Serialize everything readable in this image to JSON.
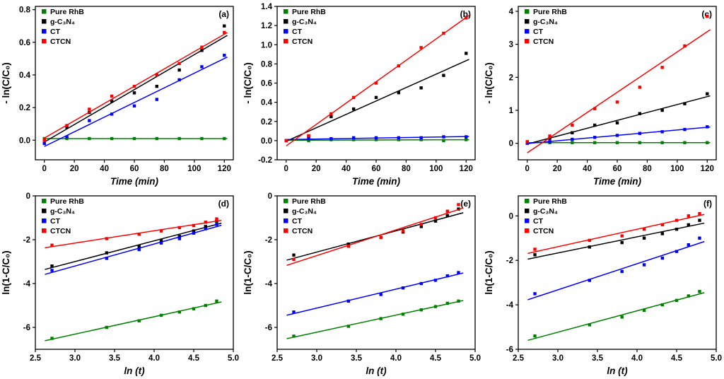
{
  "figure": {
    "background": "#ffffff"
  },
  "colors": {
    "pure_rhb": "#008000",
    "gc3n4": "#000000",
    "ct": "#0000ff",
    "ctcn": "#ff0000"
  },
  "legend_labels": [
    "Pure RhB",
    "g-C₃N₄",
    "CT",
    "CTCN"
  ],
  "chart_data": [
    {
      "id": "a",
      "type": "scatter",
      "panel_label": "(a)",
      "xlabel": "Time (min)",
      "ylabel": "- ln(C/C₀)",
      "xlim": [
        -6,
        126
      ],
      "ylim": [
        -0.12,
        0.82
      ],
      "xticks": [
        0,
        20,
        40,
        60,
        80,
        100,
        120
      ],
      "xtick_labels": [
        "0",
        "20",
        "40",
        "60",
        "80",
        "100",
        "120"
      ],
      "yticks": [
        0.0,
        0.2,
        0.4,
        0.6,
        0.8
      ],
      "ytick_labels": [
        "0.0",
        "0.2",
        "0.4",
        "0.6",
        "0.8"
      ],
      "line_x": [
        0,
        122
      ],
      "series": [
        {
          "name": "Pure RhB",
          "color": "#008000",
          "x": [
            0,
            15,
            30,
            45,
            60,
            75,
            90,
            105,
            120
          ],
          "y": [
            0.01,
            0.01,
            0.01,
            0.01,
            0.01,
            0.01,
            0.01,
            0.01,
            0.01
          ]
        },
        {
          "name": "g-C₃N₄",
          "color": "#000000",
          "x": [
            0,
            15,
            30,
            45,
            60,
            75,
            90,
            105,
            120
          ],
          "y": [
            0.0,
            0.08,
            0.17,
            0.24,
            0.29,
            0.33,
            0.43,
            0.55,
            0.7
          ]
        },
        {
          "name": "CT",
          "color": "#0000ff",
          "x": [
            0,
            15,
            30,
            45,
            60,
            75,
            90,
            105,
            120
          ],
          "y": [
            -0.02,
            0.02,
            0.12,
            0.16,
            0.21,
            0.25,
            0.37,
            0.45,
            0.52
          ]
        },
        {
          "name": "CTCN",
          "color": "#ff0000",
          "x": [
            0,
            15,
            30,
            45,
            60,
            75,
            90,
            105,
            120
          ],
          "y": [
            0.0,
            0.09,
            0.19,
            0.27,
            0.33,
            0.4,
            0.47,
            0.57,
            0.66
          ]
        }
      ]
    },
    {
      "id": "b",
      "type": "scatter",
      "panel_label": "(b)",
      "xlabel": "Time (min)",
      "ylabel": "- ln(C/C₀)",
      "xlim": [
        -6,
        126
      ],
      "ylim": [
        -0.2,
        1.4
      ],
      "xticks": [
        0,
        20,
        40,
        60,
        80,
        100,
        120
      ],
      "xtick_labels": [
        "0",
        "20",
        "40",
        "60",
        "80",
        "100",
        "120"
      ],
      "yticks": [
        -0.2,
        0.0,
        0.2,
        0.4,
        0.6,
        0.8,
        1.0,
        1.2,
        1.4
      ],
      "ytick_labels": [
        "-0.2",
        "0.0",
        "0.2",
        "0.4",
        "0.6",
        "0.8",
        "1.0",
        "1.2",
        "1.4"
      ],
      "line_x": [
        0,
        122
      ],
      "series": [
        {
          "name": "Pure RhB",
          "color": "#008000",
          "x": [
            0,
            15,
            30,
            45,
            60,
            75,
            90,
            105,
            120
          ],
          "y": [
            0.0,
            0.0,
            0.01,
            0.01,
            0.01,
            0.01,
            0.01,
            0.0,
            0.01
          ]
        },
        {
          "name": "g-C₃N₄",
          "color": "#000000",
          "x": [
            0,
            15,
            30,
            45,
            60,
            75,
            90,
            105,
            120
          ],
          "y": [
            0.0,
            0.05,
            0.25,
            0.33,
            0.45,
            0.5,
            0.55,
            0.68,
            0.91
          ]
        },
        {
          "name": "CT",
          "color": "#0000ff",
          "x": [
            0,
            15,
            30,
            45,
            60,
            75,
            90,
            105,
            120
          ],
          "y": [
            0.0,
            0.02,
            0.02,
            0.03,
            0.03,
            0.03,
            0.03,
            0.04,
            0.04
          ]
        },
        {
          "name": "CTCN",
          "color": "#ff0000",
          "x": [
            0,
            15,
            30,
            45,
            60,
            75,
            90,
            105,
            120
          ],
          "y": [
            0.0,
            0.05,
            0.28,
            0.45,
            0.6,
            0.78,
            0.97,
            1.12,
            1.28
          ]
        }
      ]
    },
    {
      "id": "c",
      "type": "scatter",
      "panel_label": "(c)",
      "xlabel": "Time (min)",
      "ylabel": "- ln(C/C₀)",
      "xlim": [
        -6,
        126
      ],
      "ylim": [
        -0.5,
        4.15
      ],
      "xticks": [
        0,
        20,
        40,
        60,
        80,
        100,
        120
      ],
      "xtick_labels": [
        "0",
        "20",
        "40",
        "60",
        "80",
        "100",
        "120"
      ],
      "yticks": [
        0,
        1,
        2,
        3,
        4
      ],
      "ytick_labels": [
        "0",
        "1",
        "2",
        "3",
        "4"
      ],
      "line_x": [
        0,
        122
      ],
      "series": [
        {
          "name": "Pure RhB",
          "color": "#008000",
          "x": [
            0,
            15,
            30,
            45,
            60,
            75,
            90,
            105,
            120
          ],
          "y": [
            0.02,
            0.02,
            0.02,
            0.02,
            0.02,
            0.02,
            0.02,
            0.02,
            0.02
          ]
        },
        {
          "name": "g-C₃N₄",
          "color": "#000000",
          "x": [
            0,
            15,
            30,
            45,
            60,
            75,
            90,
            105,
            120
          ],
          "y": [
            0.02,
            0.15,
            0.32,
            0.55,
            0.62,
            0.9,
            1.0,
            1.2,
            1.5
          ]
        },
        {
          "name": "CT",
          "color": "#0000ff",
          "x": [
            0,
            15,
            30,
            45,
            60,
            75,
            90,
            105,
            120
          ],
          "y": [
            0.0,
            0.05,
            0.12,
            0.18,
            0.24,
            0.3,
            0.35,
            0.42,
            0.5
          ]
        },
        {
          "name": "CTCN",
          "color": "#ff0000",
          "x": [
            0,
            15,
            30,
            45,
            60,
            75,
            90,
            105,
            120
          ],
          "y": [
            0.05,
            0.22,
            0.55,
            1.05,
            1.25,
            1.7,
            2.3,
            2.95,
            3.85
          ]
        }
      ]
    },
    {
      "id": "d",
      "type": "scatter",
      "panel_label": "(d)",
      "xlabel": "ln (t)",
      "ylabel": "ln(1-C/C₀)",
      "xlim": [
        2.5,
        5.0
      ],
      "ylim": [
        -7,
        0
      ],
      "xticks": [
        2.5,
        3.0,
        3.5,
        4.0,
        4.5,
        5.0
      ],
      "xtick_labels": [
        "2.5",
        "3.0",
        "3.5",
        "4.0",
        "4.5",
        "5.0"
      ],
      "yticks": [
        0,
        -2,
        -4,
        -6
      ],
      "ytick_labels": [
        "0",
        "-2",
        "-4",
        "-6"
      ],
      "line_x": [
        2.62,
        4.85
      ],
      "series": [
        {
          "name": "Pure RhB",
          "color": "#008000",
          "x": [
            2.71,
            3.4,
            3.81,
            4.09,
            4.32,
            4.5,
            4.65,
            4.79
          ],
          "y": [
            -6.5,
            -6.0,
            -5.7,
            -5.45,
            -5.3,
            -5.15,
            -5.0,
            -4.8
          ]
        },
        {
          "name": "g-C₃N₄",
          "color": "#000000",
          "x": [
            2.71,
            3.4,
            3.81,
            4.09,
            4.32,
            4.5,
            4.65,
            4.79
          ],
          "y": [
            -3.2,
            -2.6,
            -2.3,
            -2.05,
            -1.85,
            -1.6,
            -1.4,
            -1.15
          ]
        },
        {
          "name": "CT",
          "color": "#0000ff",
          "x": [
            2.71,
            3.4,
            3.81,
            4.09,
            4.32,
            4.5,
            4.65,
            4.79
          ],
          "y": [
            -3.4,
            -2.85,
            -2.45,
            -2.15,
            -1.95,
            -1.7,
            -1.5,
            -1.3
          ]
        },
        {
          "name": "CTCN",
          "color": "#ff0000",
          "x": [
            2.71,
            3.4,
            3.81,
            4.09,
            4.32,
            4.5,
            4.65,
            4.79
          ],
          "y": [
            -2.25,
            -1.95,
            -1.75,
            -1.6,
            -1.45,
            -1.35,
            -1.2,
            -1.05
          ]
        }
      ]
    },
    {
      "id": "e",
      "type": "scatter",
      "panel_label": "(e)",
      "xlabel": "ln (t)",
      "ylabel": "ln(1-C/C₀)",
      "xlim": [
        2.5,
        5.0
      ],
      "ylim": [
        -7,
        0
      ],
      "xticks": [
        2.5,
        3.0,
        3.5,
        4.0,
        4.5,
        5.0
      ],
      "xtick_labels": [
        "2.5",
        "3.0",
        "3.5",
        "4.0",
        "4.5",
        "5.0"
      ],
      "yticks": [
        0,
        -2,
        -4,
        -6
      ],
      "ytick_labels": [
        "0",
        "-2",
        "-4",
        "-6"
      ],
      "line_x": [
        2.62,
        4.85
      ],
      "series": [
        {
          "name": "Pure RhB",
          "color": "#008000",
          "x": [
            2.71,
            3.4,
            3.81,
            4.09,
            4.32,
            4.5,
            4.65,
            4.79
          ],
          "y": [
            -6.4,
            -5.95,
            -5.6,
            -5.4,
            -5.2,
            -5.05,
            -4.9,
            -4.8
          ]
        },
        {
          "name": "g-C₃N₄",
          "color": "#000000",
          "x": [
            2.71,
            3.4,
            3.81,
            4.09,
            4.32,
            4.5,
            4.65,
            4.79
          ],
          "y": [
            -2.7,
            -2.2,
            -1.9,
            -1.65,
            -1.4,
            -1.15,
            -0.9,
            -0.6
          ]
        },
        {
          "name": "CT",
          "color": "#0000ff",
          "x": [
            2.71,
            3.4,
            3.81,
            4.09,
            4.32,
            4.5,
            4.65,
            4.79
          ],
          "y": [
            -5.3,
            -4.8,
            -4.5,
            -4.2,
            -4.0,
            -3.85,
            -3.65,
            -3.5
          ]
        },
        {
          "name": "CTCN",
          "color": "#ff0000",
          "x": [
            2.71,
            3.4,
            3.81,
            4.09,
            4.32,
            4.5,
            4.65,
            4.79
          ],
          "y": [
            -2.9,
            -2.3,
            -1.9,
            -1.6,
            -1.3,
            -1.0,
            -0.7,
            -0.4
          ]
        }
      ]
    },
    {
      "id": "f",
      "type": "scatter",
      "panel_label": "(f)",
      "xlabel": "ln (t)",
      "ylabel": "ln(1-C/C₀)",
      "xlim": [
        2.5,
        5.0
      ],
      "ylim": [
        -6,
        0.9
      ],
      "xticks": [
        2.5,
        3.0,
        3.5,
        4.0,
        4.5,
        5.0
      ],
      "xtick_labels": [
        "2.5",
        "3.0",
        "3.5",
        "4.0",
        "4.5",
        "5.0"
      ],
      "yticks": [
        0,
        -2,
        -4,
        -6
      ],
      "ytick_labels": [
        "0",
        "-2",
        "-4",
        "-6"
      ],
      "line_x": [
        2.62,
        4.85
      ],
      "series": [
        {
          "name": "Pure RhB",
          "color": "#008000",
          "x": [
            2.71,
            3.4,
            3.81,
            4.09,
            4.32,
            4.5,
            4.65,
            4.79
          ],
          "y": [
            -5.4,
            -4.9,
            -4.55,
            -4.25,
            -4.0,
            -3.8,
            -3.6,
            -3.4
          ]
        },
        {
          "name": "g-C₃N₄",
          "color": "#000000",
          "x": [
            2.71,
            3.4,
            3.81,
            4.09,
            4.32,
            4.5,
            4.65,
            4.79
          ],
          "y": [
            -1.75,
            -1.4,
            -1.2,
            -1.0,
            -0.8,
            -0.6,
            -0.4,
            -0.2
          ]
        },
        {
          "name": "CT",
          "color": "#0000ff",
          "x": [
            2.71,
            3.4,
            3.81,
            4.09,
            4.32,
            4.5,
            4.65,
            4.79
          ],
          "y": [
            -3.5,
            -2.9,
            -2.5,
            -2.2,
            -1.9,
            -1.6,
            -1.3,
            -1.0
          ]
        },
        {
          "name": "CTCN",
          "color": "#ff0000",
          "x": [
            2.71,
            3.4,
            3.81,
            4.09,
            4.32,
            4.5,
            4.65,
            4.79
          ],
          "y": [
            -1.5,
            -1.1,
            -0.9,
            -0.6,
            -0.4,
            -0.2,
            0.0,
            0.1
          ]
        }
      ]
    }
  ]
}
